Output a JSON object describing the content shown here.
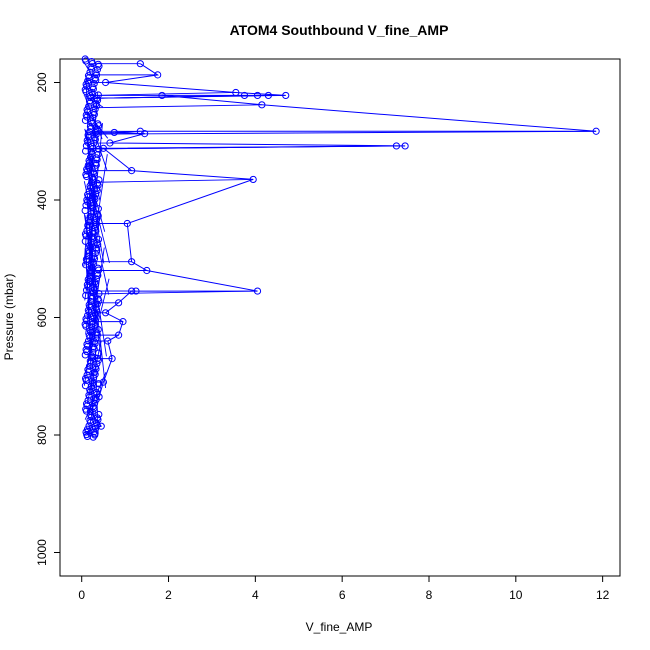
{
  "chart_data": {
    "type": "scatter",
    "title": "ATOM4 Southbound V_fine_AMP",
    "xlabel": "V_fine_AMP",
    "ylabel": "Pressure (mbar)",
    "xlim": [
      -0.5,
      12.4
    ],
    "ylim": [
      1040,
      160
    ],
    "y_reversed": true,
    "grid": false,
    "legend": "none",
    "x_ticks": [
      0,
      2,
      4,
      6,
      8,
      10,
      12
    ],
    "y_ticks": [
      200,
      400,
      600,
      800,
      1000
    ],
    "color": "#0000ff",
    "series": [
      {
        "points": [
          {
            "x": 11.85,
            "y": 283
          },
          {
            "x": 7.45,
            "y": 308
          },
          {
            "x": 7.25,
            "y": 308
          },
          {
            "x": 4.7,
            "y": 222
          },
          {
            "x": 4.3,
            "y": 222
          },
          {
            "x": 4.15,
            "y": 238
          },
          {
            "x": 4.05,
            "y": 222
          },
          {
            "x": 3.95,
            "y": 365
          },
          {
            "x": 3.75,
            "y": 222
          },
          {
            "x": 4.05,
            "y": 555
          },
          {
            "x": 3.55,
            "y": 217
          },
          {
            "x": 1.85,
            "y": 222
          },
          {
            "x": 1.75,
            "y": 187
          },
          {
            "x": 1.5,
            "y": 520
          },
          {
            "x": 1.45,
            "y": 287
          },
          {
            "x": 1.35,
            "y": 283
          },
          {
            "x": 1.35,
            "y": 168
          },
          {
            "x": 1.25,
            "y": 555
          },
          {
            "x": 1.15,
            "y": 505
          },
          {
            "x": 1.15,
            "y": 555
          },
          {
            "x": 1.15,
            "y": 350
          },
          {
            "x": 1.05,
            "y": 440
          },
          {
            "x": 0.95,
            "y": 607
          },
          {
            "x": 0.85,
            "y": 575
          },
          {
            "x": 0.85,
            "y": 630
          },
          {
            "x": 0.75,
            "y": 285
          },
          {
            "x": 0.7,
            "y": 670
          },
          {
            "x": 0.65,
            "y": 303
          },
          {
            "x": 0.6,
            "y": 640
          },
          {
            "x": 0.55,
            "y": 592
          },
          {
            "x": 0.55,
            "y": 200
          },
          {
            "x": 0.5,
            "y": 312
          },
          {
            "x": 0.5,
            "y": 710
          },
          {
            "x": 0.45,
            "y": 785
          },
          {
            "x": 0.4,
            "y": 735
          },
          {
            "x": 0.3,
            "y": 800
          },
          {
            "x": 0.2,
            "y": 760
          },
          {
            "x": 0.1,
            "y": 795
          }
        ]
      }
    ]
  }
}
